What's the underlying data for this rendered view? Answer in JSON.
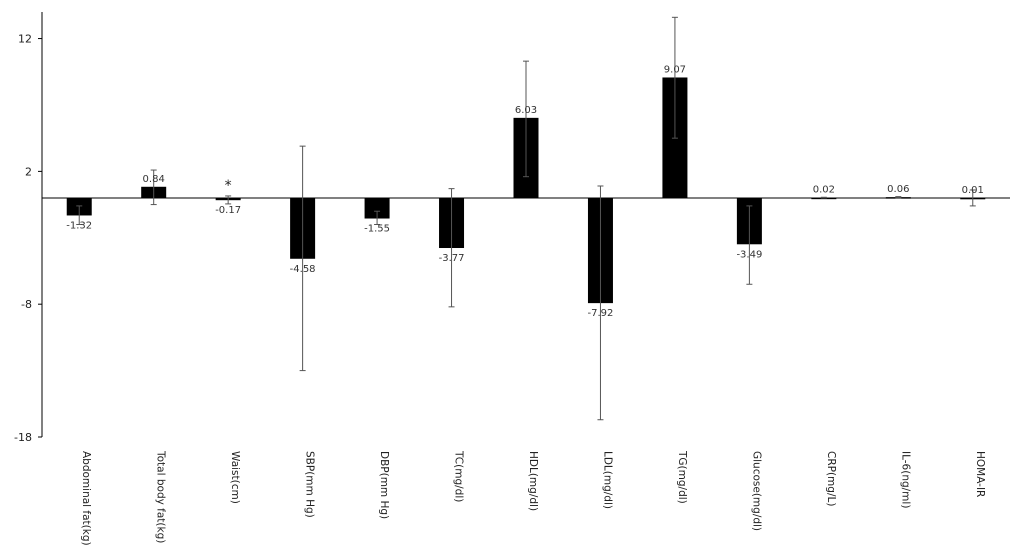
{
  "chart_data": {
    "type": "bar",
    "categories": [
      "Abdominal fat(kg)",
      "Total body fat(kg)",
      "Waist(cm)",
      "SBP(mm Hg)",
      "DBP(mm Hg)",
      "TC(mg/dl)",
      "HDL(mg/dl)",
      "LDL(mg/dl)",
      "TG(mg/dl)",
      "Glucose(mg/dl)",
      "CRP(mg/L)",
      "IL-6(ng/ml)",
      "HOMA-IR"
    ],
    "values": [
      -1.32,
      0.84,
      -0.17,
      -4.58,
      -1.55,
      -3.77,
      6.03,
      -7.92,
      9.07,
      -3.49,
      0.02,
      0.06,
      0.01
    ],
    "value_labels": [
      "-1.32",
      "0.84",
      "-0.17",
      "-4.58",
      "-1.55",
      "-3.77",
      "6.03",
      "-7.92",
      "9.07",
      "-3.49",
      "0.02",
      "0.06",
      "0.01"
    ],
    "error_low": [
      -2.0,
      -0.5,
      -0.45,
      -13.0,
      -2.0,
      -8.2,
      1.6,
      -16.7,
      4.5,
      -6.5,
      0.0,
      0.0,
      -0.6
    ],
    "error_high": [
      -0.6,
      2.1,
      0.15,
      3.9,
      -1.0,
      0.7,
      10.3,
      0.9,
      13.6,
      -0.6,
      0.05,
      0.1,
      0.6
    ],
    "annotations": [
      {
        "category": "Waist(cm)",
        "text": "*"
      }
    ],
    "yticks": [
      12,
      2,
      -8,
      -18
    ],
    "ylim": [
      -18,
      14
    ],
    "title": "",
    "xlabel": "",
    "ylabel": "",
    "grid": false,
    "bar_color": "#000000",
    "error_color": "#555555"
  }
}
